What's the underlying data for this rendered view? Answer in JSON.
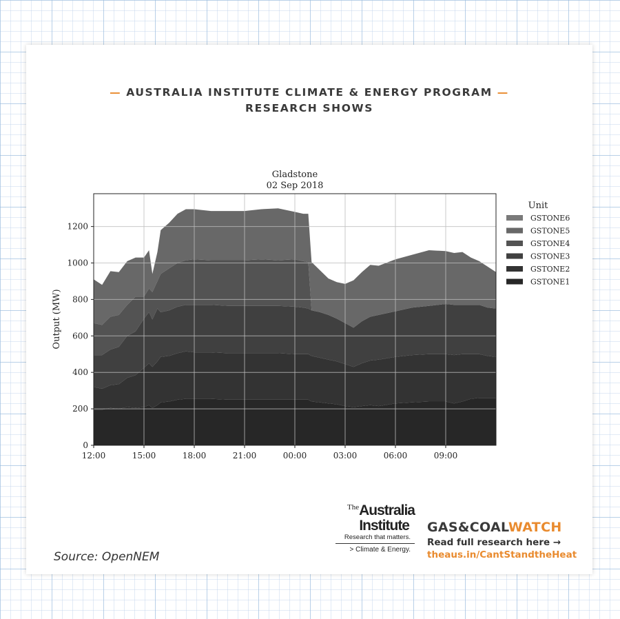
{
  "header": {
    "dash_left": "—",
    "line1": "AUSTRALIA INSTITUTE CLIMATE & ENERGY PROGRAM",
    "dash_right": "—",
    "line2": "RESEARCH SHOWS"
  },
  "colors": {
    "accent": "#e98b2f",
    "text_dark": "#3a3a3a"
  },
  "chart_data": {
    "type": "area",
    "stacked": true,
    "title": "Gladstone",
    "subtitle": "02 Sep 2018",
    "ylabel": "Output (MW)",
    "xlabel": "",
    "xlim": [
      12,
      36
    ],
    "ylim": [
      0,
      1380
    ],
    "yticks": [
      0,
      200,
      400,
      600,
      800,
      1000,
      1200
    ],
    "xticks": [
      {
        "value": 12,
        "label": "12:00"
      },
      {
        "value": 15,
        "label": "15:00"
      },
      {
        "value": 18,
        "label": "18:00"
      },
      {
        "value": 21,
        "label": "21:00"
      },
      {
        "value": 24,
        "label": "00:00"
      },
      {
        "value": 27,
        "label": "03:00"
      },
      {
        "value": 30,
        "label": "06:00"
      },
      {
        "value": 33,
        "label": "09:00"
      }
    ],
    "grid": true,
    "legend_title": "Unit",
    "legend_position": "right",
    "x": [
      12,
      12.5,
      13,
      13.5,
      14,
      14.5,
      15,
      15.3,
      15.5,
      15.8,
      16,
      16.5,
      17,
      17.5,
      18,
      19,
      20,
      21,
      22,
      23,
      24,
      24.5,
      24.8,
      25,
      25.5,
      26,
      26.5,
      27,
      27.5,
      28,
      28.5,
      29,
      30,
      31,
      32,
      33,
      33.5,
      34,
      34.5,
      35,
      35.5,
      36
    ],
    "series": [
      {
        "name": "GSTONE1",
        "color": "#272727",
        "values": [
          195,
          195,
          205,
          200,
          210,
          205,
          210,
          220,
          205,
          220,
          235,
          240,
          250,
          255,
          255,
          255,
          250,
          250,
          250,
          250,
          250,
          250,
          250,
          240,
          235,
          230,
          225,
          215,
          210,
          215,
          220,
          215,
          230,
          235,
          240,
          240,
          230,
          240,
          255,
          260,
          260,
          260
        ]
      },
      {
        "name": "GSTONE2",
        "color": "#333333",
        "values": [
          125,
          115,
          125,
          135,
          160,
          180,
          215,
          230,
          225,
          240,
          250,
          250,
          255,
          260,
          255,
          255,
          255,
          255,
          255,
          255,
          250,
          250,
          250,
          250,
          245,
          240,
          235,
          230,
          220,
          235,
          245,
          255,
          255,
          260,
          260,
          260,
          265,
          260,
          245,
          240,
          230,
          225
        ]
      },
      {
        "name": "GSTONE3",
        "color": "#404040",
        "values": [
          175,
          185,
          195,
          205,
          230,
          240,
          270,
          280,
          260,
          290,
          245,
          250,
          255,
          255,
          260,
          260,
          260,
          260,
          260,
          260,
          260,
          255,
          250,
          250,
          250,
          245,
          235,
          225,
          215,
          230,
          240,
          245,
          250,
          260,
          265,
          275,
          275,
          270,
          270,
          270,
          265,
          265
        ]
      },
      {
        "name": "GSTONE4",
        "color": "#535353",
        "values": [
          175,
          165,
          180,
          175,
          170,
          190,
          120,
          130,
          150,
          150,
          210,
          230,
          240,
          245,
          250,
          245,
          250,
          250,
          255,
          250,
          260,
          255,
          255,
          0,
          0,
          0,
          0,
          0,
          0,
          0,
          0,
          0,
          0,
          0,
          0,
          0,
          0,
          0,
          0,
          0,
          0,
          0
        ]
      },
      {
        "name": "GSTONE5",
        "color": "#686868",
        "values": [
          240,
          220,
          250,
          235,
          240,
          215,
          215,
          210,
          100,
          160,
          240,
          250,
          270,
          280,
          275,
          270,
          270,
          270,
          275,
          285,
          260,
          260,
          265,
          265,
          230,
          200,
          200,
          215,
          260,
          270,
          285,
          270,
          285,
          290,
          305,
          290,
          285,
          290,
          260,
          240,
          225,
          200
        ]
      },
      {
        "name": "GSTONE6",
        "color": "#7a7a7a",
        "values": [
          0,
          0,
          0,
          0,
          0,
          0,
          0,
          0,
          0,
          0,
          0,
          0,
          0,
          0,
          0,
          0,
          0,
          0,
          0,
          0,
          0,
          0,
          0,
          0,
          0,
          0,
          0,
          0,
          0,
          0,
          0,
          0,
          0,
          0,
          0,
          0,
          0,
          0,
          0,
          0,
          0,
          0
        ]
      }
    ]
  },
  "footer": {
    "source": "Source: OpenNEM",
    "logo_the": "The",
    "logo_line1": "Australia",
    "logo_line2": "Institute",
    "logo_tagline": "Research that matters.",
    "logo_sub": "> Climate & Energy.",
    "gcw_brand_a": "GAS&COAL",
    "gcw_brand_b": "WATCH",
    "read_more": "Read full research here →",
    "link": "theaus.in/CantStandtheHeat"
  }
}
